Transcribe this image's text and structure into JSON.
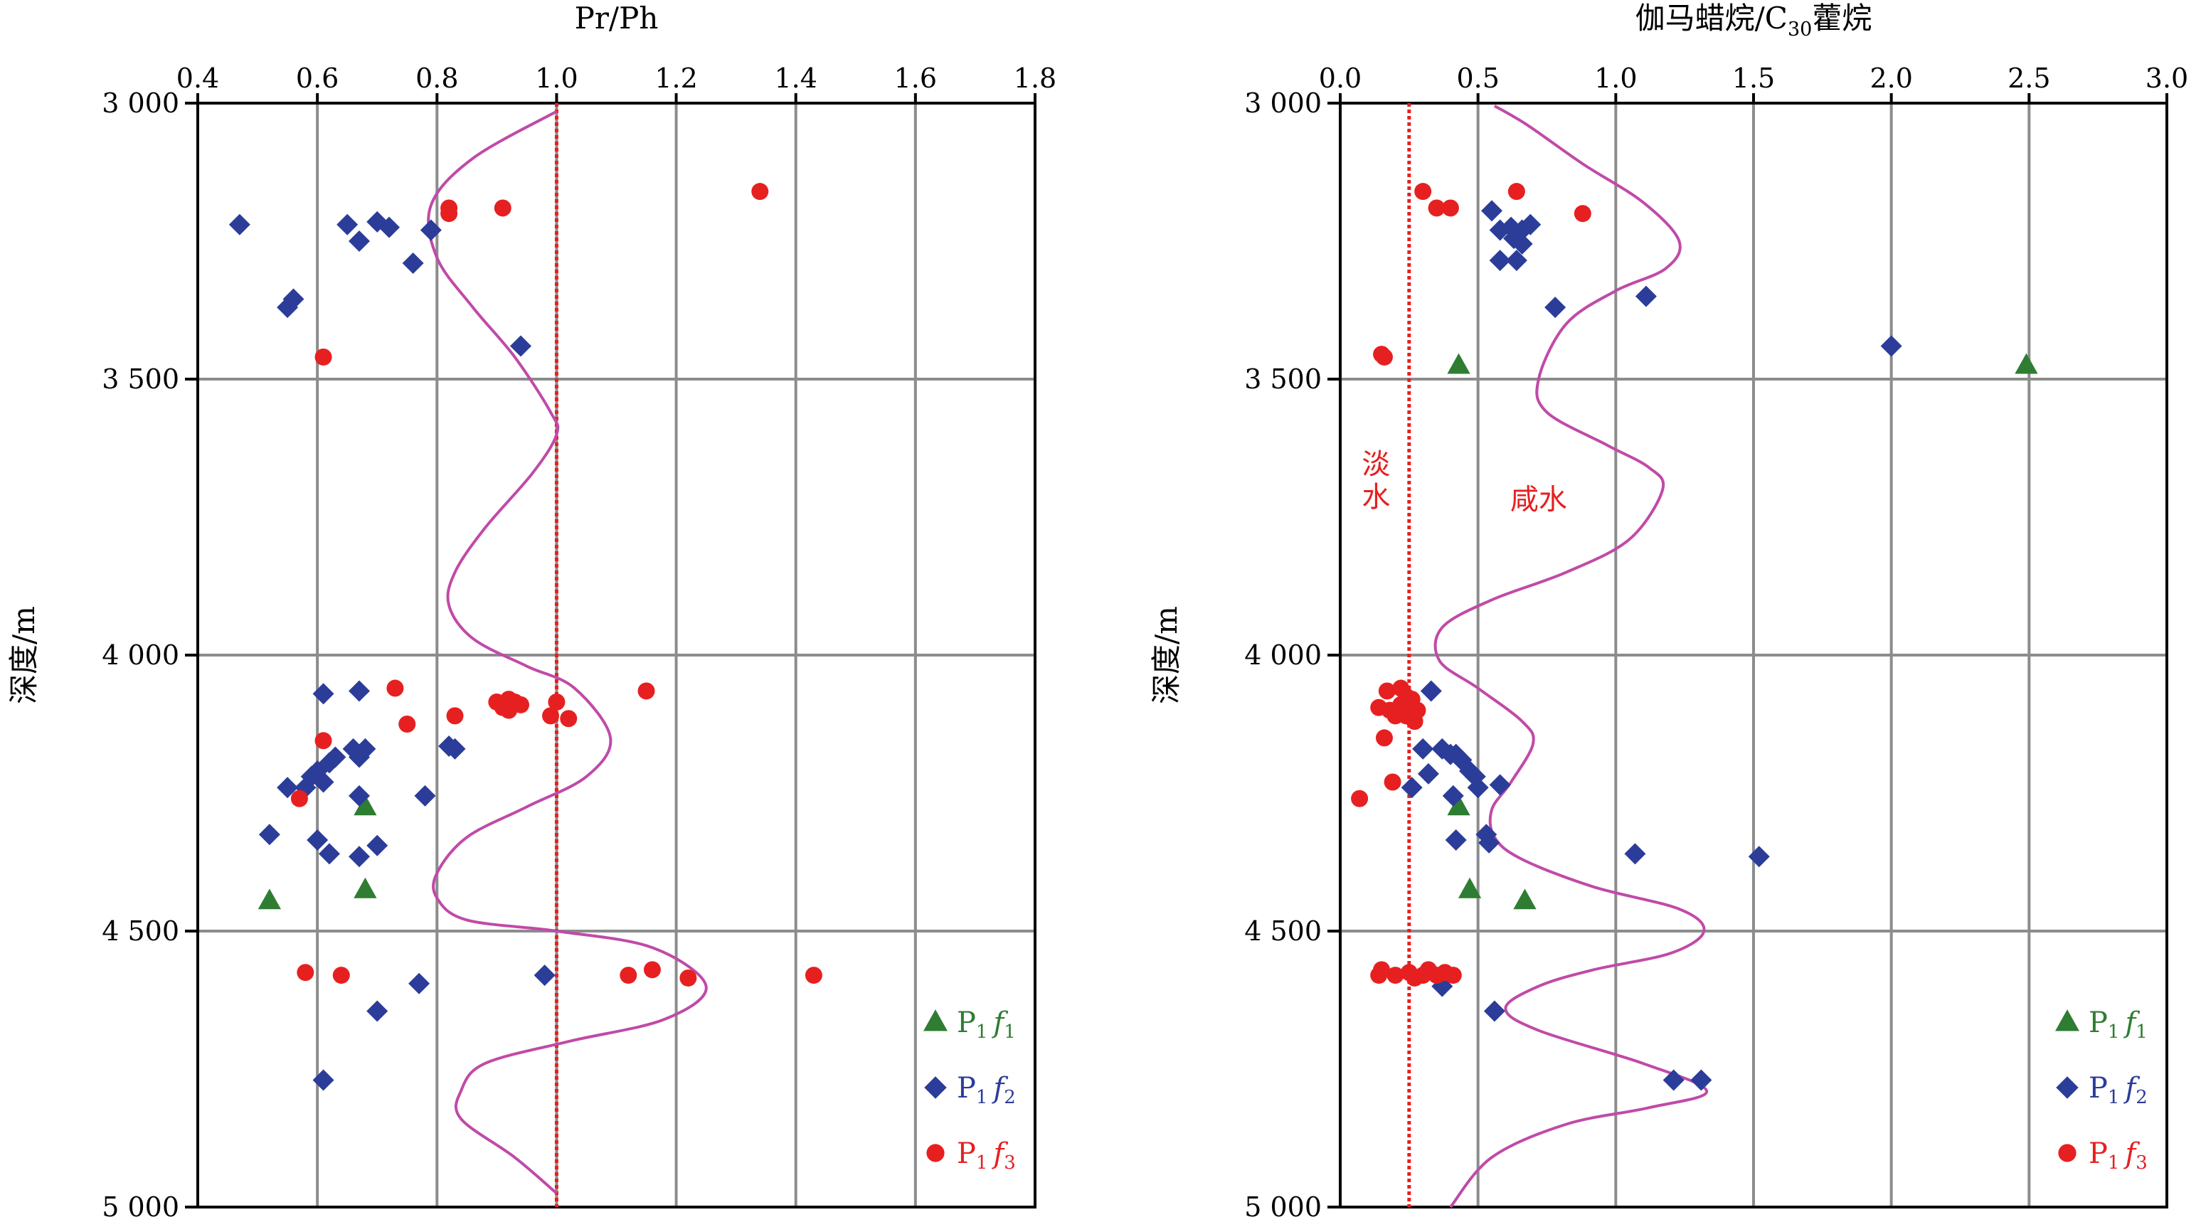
{
  "figure": {
    "depth_label": "深度/m",
    "y_ticks": [
      {
        "value": 3000,
        "label": "3 000"
      },
      {
        "value": 3500,
        "label": "3 500"
      },
      {
        "value": 4000,
        "label": "4 000"
      },
      {
        "value": 4500,
        "label": "4 500"
      },
      {
        "value": 5000,
        "label": "5 000"
      }
    ],
    "ylim": [
      3000,
      5000
    ],
    "y_inverted": true
  },
  "legend": [
    {
      "series": "P1f1",
      "main": "P",
      "sub1": "1",
      "italic": "f",
      "sub2": "1",
      "marker": "triangle",
      "color": "#2e7d32"
    },
    {
      "series": "P1f2",
      "main": "P",
      "sub1": "1",
      "italic": "f",
      "sub2": "2",
      "marker": "diamond",
      "color": "#2b3d99"
    },
    {
      "series": "P1f3",
      "main": "P",
      "sub1": "1",
      "italic": "f",
      "sub2": "3",
      "marker": "circle",
      "color": "#e62020"
    }
  ],
  "colors": {
    "grid": "#8c8c8c",
    "frame": "#000000",
    "trend": "#c04aa8",
    "threshold": "#e62020"
  },
  "chart_data": [
    {
      "type": "scatter",
      "title": "Pr/Ph",
      "x_axis_position": "top",
      "xlim": [
        0.4,
        1.8
      ],
      "x_ticks": [
        0.4,
        0.6,
        0.8,
        1.0,
        1.2,
        1.4,
        1.6,
        1.8
      ],
      "x_tick_labels": [
        "0.4",
        "0.6",
        "0.8",
        "1.0",
        "1.2",
        "1.4",
        "1.6",
        "1.8"
      ],
      "ylabel": "深度/m",
      "ylim": [
        3000,
        5000
      ],
      "grid": true,
      "legend_position": "bottom-right",
      "threshold_x": 1.0,
      "series": [
        {
          "name": "P1f1",
          "marker": "triangle",
          "color": "#2e7d32",
          "points": [
            [
              0.52,
              4445
            ],
            [
              0.68,
              4275
            ],
            [
              0.68,
              4425
            ]
          ]
        },
        {
          "name": "P1f2",
          "marker": "diamond",
          "color": "#2b3d99",
          "points": [
            [
              0.47,
              3220
            ],
            [
              0.65,
              3220
            ],
            [
              0.67,
              3250
            ],
            [
              0.7,
              3215
            ],
            [
              0.72,
              3225
            ],
            [
              0.79,
              3230
            ],
            [
              0.76,
              3290
            ],
            [
              0.56,
              3355
            ],
            [
              0.55,
              3370
            ],
            [
              0.94,
              3440
            ],
            [
              0.61,
              4070
            ],
            [
              0.67,
              4065
            ],
            [
              0.68,
              4170
            ],
            [
              0.67,
              4185
            ],
            [
              0.66,
              4170
            ],
            [
              0.63,
              4185
            ],
            [
              0.62,
              4195
            ],
            [
              0.6,
              4210
            ],
            [
              0.59,
              4220
            ],
            [
              0.61,
              4230
            ],
            [
              0.58,
              4240
            ],
            [
              0.55,
              4240
            ],
            [
              0.82,
              4165
            ],
            [
              0.83,
              4170
            ],
            [
              0.78,
              4255
            ],
            [
              0.67,
              4255
            ],
            [
              0.52,
              4325
            ],
            [
              0.6,
              4335
            ],
            [
              0.7,
              4345
            ],
            [
              0.62,
              4360
            ],
            [
              0.67,
              4365
            ],
            [
              0.98,
              4580
            ],
            [
              0.77,
              4595
            ],
            [
              0.7,
              4645
            ],
            [
              0.61,
              4770
            ]
          ]
        },
        {
          "name": "P1f3",
          "marker": "circle",
          "color": "#e62020",
          "points": [
            [
              1.34,
              3160
            ],
            [
              0.91,
              3190
            ],
            [
              0.82,
              3190
            ],
            [
              0.82,
              3200
            ],
            [
              0.61,
              3460
            ],
            [
              1.15,
              4065
            ],
            [
              0.73,
              4060
            ],
            [
              0.9,
              4085
            ],
            [
              0.92,
              4080
            ],
            [
              0.93,
              4085
            ],
            [
              0.92,
              4100
            ],
            [
              0.91,
              4095
            ],
            [
              0.94,
              4090
            ],
            [
              1.0,
              4085
            ],
            [
              0.99,
              4110
            ],
            [
              1.02,
              4115
            ],
            [
              0.83,
              4110
            ],
            [
              0.75,
              4125
            ],
            [
              0.61,
              4155
            ],
            [
              0.57,
              4260
            ],
            [
              0.58,
              4575
            ],
            [
              0.64,
              4580
            ],
            [
              1.12,
              4580
            ],
            [
              1.16,
              4570
            ],
            [
              1.22,
              4585
            ],
            [
              1.43,
              4580
            ]
          ]
        }
      ],
      "trend_line": {
        "color": "#c04aa8",
        "points": [
          [
            1.0,
            3015
          ],
          [
            0.86,
            3100
          ],
          [
            0.79,
            3185
          ],
          [
            0.8,
            3280
          ],
          [
            0.86,
            3370
          ],
          [
            0.93,
            3460
          ],
          [
            0.99,
            3560
          ],
          [
            1.0,
            3600
          ],
          [
            0.96,
            3670
          ],
          [
            0.88,
            3770
          ],
          [
            0.83,
            3850
          ],
          [
            0.82,
            3910
          ],
          [
            0.86,
            3970
          ],
          [
            0.95,
            4020
          ],
          [
            1.03,
            4060
          ],
          [
            1.09,
            4150
          ],
          [
            1.05,
            4220
          ],
          [
            0.95,
            4275
          ],
          [
            0.85,
            4330
          ],
          [
            0.8,
            4395
          ],
          [
            0.8,
            4440
          ],
          [
            0.85,
            4480
          ],
          [
            1.0,
            4500
          ],
          [
            1.16,
            4530
          ],
          [
            1.25,
            4600
          ],
          [
            1.18,
            4660
          ],
          [
            1.02,
            4700
          ],
          [
            0.88,
            4740
          ],
          [
            0.84,
            4790
          ],
          [
            0.84,
            4840
          ],
          [
            0.93,
            4910
          ],
          [
            1.0,
            4975
          ]
        ]
      }
    },
    {
      "type": "scatter",
      "title": "伽马蜡烷/C30藿烷",
      "title_parts": {
        "pre": "伽马蜡烷/C",
        "sub": "30",
        "post": "藿烷"
      },
      "x_axis_position": "top",
      "xlim": [
        0.0,
        3.0
      ],
      "x_ticks": [
        0.0,
        0.5,
        1.0,
        1.5,
        2.0,
        2.5,
        3.0
      ],
      "x_tick_labels": [
        "0.0",
        "0.5",
        "1.0",
        "1.5",
        "2.0",
        "2.5",
        "3.0"
      ],
      "ylabel": "深度/m",
      "ylim": [
        3000,
        5000
      ],
      "grid": true,
      "legend_position": "bottom-right",
      "threshold_x": 0.25,
      "annotations": [
        {
          "text": "淡水",
          "near_x": 0.13,
          "near_y": 3700,
          "color": "#e62020",
          "orientation": "vertical"
        },
        {
          "text": "咸水",
          "near_x": 0.72,
          "near_y": 3720,
          "color": "#e62020",
          "orientation": "horizontal"
        }
      ],
      "series": [
        {
          "name": "P1f1",
          "marker": "triangle",
          "color": "#2e7d32",
          "points": [
            [
              0.43,
              3475
            ],
            [
              2.49,
              3475
            ],
            [
              0.43,
              4275
            ],
            [
              0.47,
              4425
            ],
            [
              0.67,
              4445
            ]
          ]
        },
        {
          "name": "P1f2",
          "marker": "diamond",
          "color": "#2b3d99",
          "points": [
            [
              0.55,
              3195
            ],
            [
              0.58,
              3230
            ],
            [
              0.62,
              3225
            ],
            [
              0.66,
              3230
            ],
            [
              0.69,
              3220
            ],
            [
              0.63,
              3245
            ],
            [
              0.66,
              3255
            ],
            [
              0.58,
              3285
            ],
            [
              0.64,
              3285
            ],
            [
              0.78,
              3370
            ],
            [
              1.11,
              3350
            ],
            [
              2.0,
              3440
            ],
            [
              0.33,
              4065
            ],
            [
              0.37,
              4170
            ],
            [
              0.3,
              4170
            ],
            [
              0.4,
              4180
            ],
            [
              0.44,
              4190
            ],
            [
              0.47,
              4210
            ],
            [
              0.49,
              4220
            ],
            [
              0.42,
              4180
            ],
            [
              0.58,
              4235
            ],
            [
              0.5,
              4240
            ],
            [
              0.41,
              4255
            ],
            [
              0.32,
              4215
            ],
            [
              0.26,
              4240
            ],
            [
              0.53,
              4325
            ],
            [
              0.42,
              4335
            ],
            [
              0.54,
              4340
            ],
            [
              1.07,
              4360
            ],
            [
              1.52,
              4365
            ],
            [
              0.37,
              4600
            ],
            [
              0.56,
              4645
            ],
            [
              1.21,
              4770
            ],
            [
              1.31,
              4770
            ]
          ]
        },
        {
          "name": "P1f3",
          "marker": "circle",
          "color": "#e62020",
          "points": [
            [
              0.3,
              3160
            ],
            [
              0.35,
              3190
            ],
            [
              0.4,
              3190
            ],
            [
              0.64,
              3160
            ],
            [
              0.88,
              3200
            ],
            [
              0.15,
              3455
            ],
            [
              0.16,
              3460
            ],
            [
              0.17,
              4065
            ],
            [
              0.22,
              4060
            ],
            [
              0.24,
              4075
            ],
            [
              0.26,
              4080
            ],
            [
              0.22,
              4090
            ],
            [
              0.18,
              4100
            ],
            [
              0.14,
              4095
            ],
            [
              0.2,
              4110
            ],
            [
              0.24,
              4110
            ],
            [
              0.28,
              4100
            ],
            [
              0.27,
              4120
            ],
            [
              0.16,
              4150
            ],
            [
              0.19,
              4230
            ],
            [
              0.07,
              4260
            ],
            [
              0.15,
              4570
            ],
            [
              0.2,
              4580
            ],
            [
              0.25,
              4575
            ],
            [
              0.32,
              4570
            ],
            [
              0.35,
              4580
            ],
            [
              0.38,
              4575
            ],
            [
              0.41,
              4580
            ],
            [
              0.27,
              4585
            ],
            [
              0.3,
              4580
            ],
            [
              0.14,
              4580
            ]
          ]
        }
      ],
      "trend_line": {
        "color": "#c04aa8",
        "points": [
          [
            0.56,
            3005
          ],
          [
            0.68,
            3040
          ],
          [
            0.88,
            3110
          ],
          [
            1.1,
            3180
          ],
          [
            1.23,
            3250
          ],
          [
            1.18,
            3300
          ],
          [
            1.0,
            3340
          ],
          [
            0.82,
            3400
          ],
          [
            0.72,
            3500
          ],
          [
            0.75,
            3560
          ],
          [
            0.97,
            3620
          ],
          [
            1.12,
            3660
          ],
          [
            1.17,
            3700
          ],
          [
            1.05,
            3790
          ],
          [
            0.82,
            3850
          ],
          [
            0.55,
            3900
          ],
          [
            0.37,
            3950
          ],
          [
            0.36,
            4010
          ],
          [
            0.5,
            4060
          ],
          [
            0.66,
            4120
          ],
          [
            0.7,
            4160
          ],
          [
            0.62,
            4230
          ],
          [
            0.55,
            4280
          ],
          [
            0.56,
            4330
          ],
          [
            0.66,
            4370
          ],
          [
            0.92,
            4420
          ],
          [
            1.23,
            4460
          ],
          [
            1.32,
            4500
          ],
          [
            1.2,
            4540
          ],
          [
            0.92,
            4570
          ],
          [
            0.72,
            4600
          ],
          [
            0.6,
            4640
          ],
          [
            0.72,
            4680
          ],
          [
            1.1,
            4740
          ],
          [
            1.33,
            4790
          ],
          [
            1.12,
            4820
          ],
          [
            0.82,
            4850
          ],
          [
            0.55,
            4910
          ],
          [
            0.4,
            5000
          ]
        ]
      }
    }
  ]
}
